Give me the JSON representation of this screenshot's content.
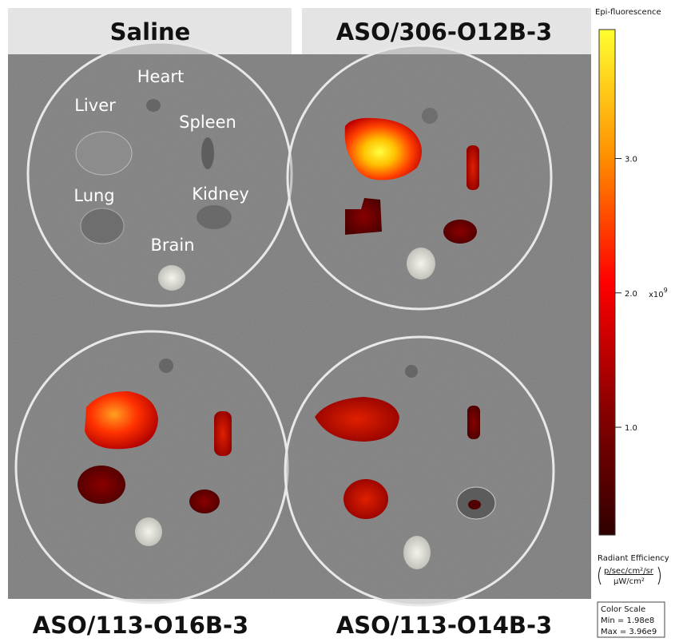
{
  "panels": [
    {
      "label": "Saline"
    },
    {
      "label": "ASO/306-O12B-3"
    },
    {
      "label": "ASO/113-O16B-3"
    },
    {
      "label": "ASO/113-O14B-3"
    }
  ],
  "organ_labels": [
    "Heart",
    "Liver",
    "Spleen",
    "Lung",
    "Kidney",
    "Brain"
  ],
  "colorbar": {
    "title": "Epi-fluorescence",
    "lim": [
      0.198,
      3.96
    ],
    "ticks": [
      {
        "value": 1,
        "label": "1.0"
      },
      {
        "value": 2,
        "label": "2.0"
      },
      {
        "value": 3,
        "label": "3.0"
      }
    ],
    "multiplier": "x10",
    "exponent": "9",
    "quantity": "Radiant Efficiency",
    "unit_numerator": "p/sec/cm²/sr",
    "unit_denominator": "µW/cm²",
    "scale_title": "Color Scale",
    "min": "Min = 1.98e8",
    "max": "Max = 3.96e9"
  }
}
